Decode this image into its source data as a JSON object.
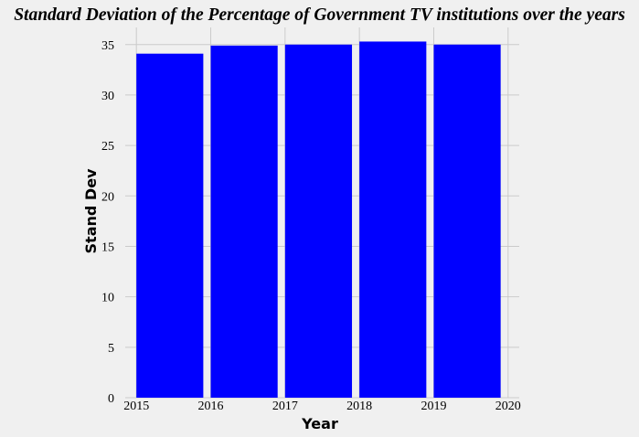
{
  "chart_data": {
    "type": "bar",
    "title": "Standard Deviation of the Percentage of Government TV institutions over the years",
    "xlabel": "Year",
    "ylabel": "Stand Dev",
    "categories": [
      "2015",
      "2016",
      "2017",
      "2018",
      "2019"
    ],
    "values": [
      34.1,
      34.9,
      35.0,
      35.3,
      35.0
    ],
    "x_ticks": [
      "2015",
      "2016",
      "2017",
      "2018",
      "2019",
      "2020"
    ],
    "y_ticks": [
      "0",
      "5",
      "10",
      "15",
      "20",
      "25",
      "30",
      "35"
    ],
    "ylim": [
      0,
      36.7
    ],
    "xlim": [
      2014.85,
      2020.15
    ],
    "grid": true,
    "bar_color": "#0000ff",
    "background_color": "#f0f0f0"
  }
}
